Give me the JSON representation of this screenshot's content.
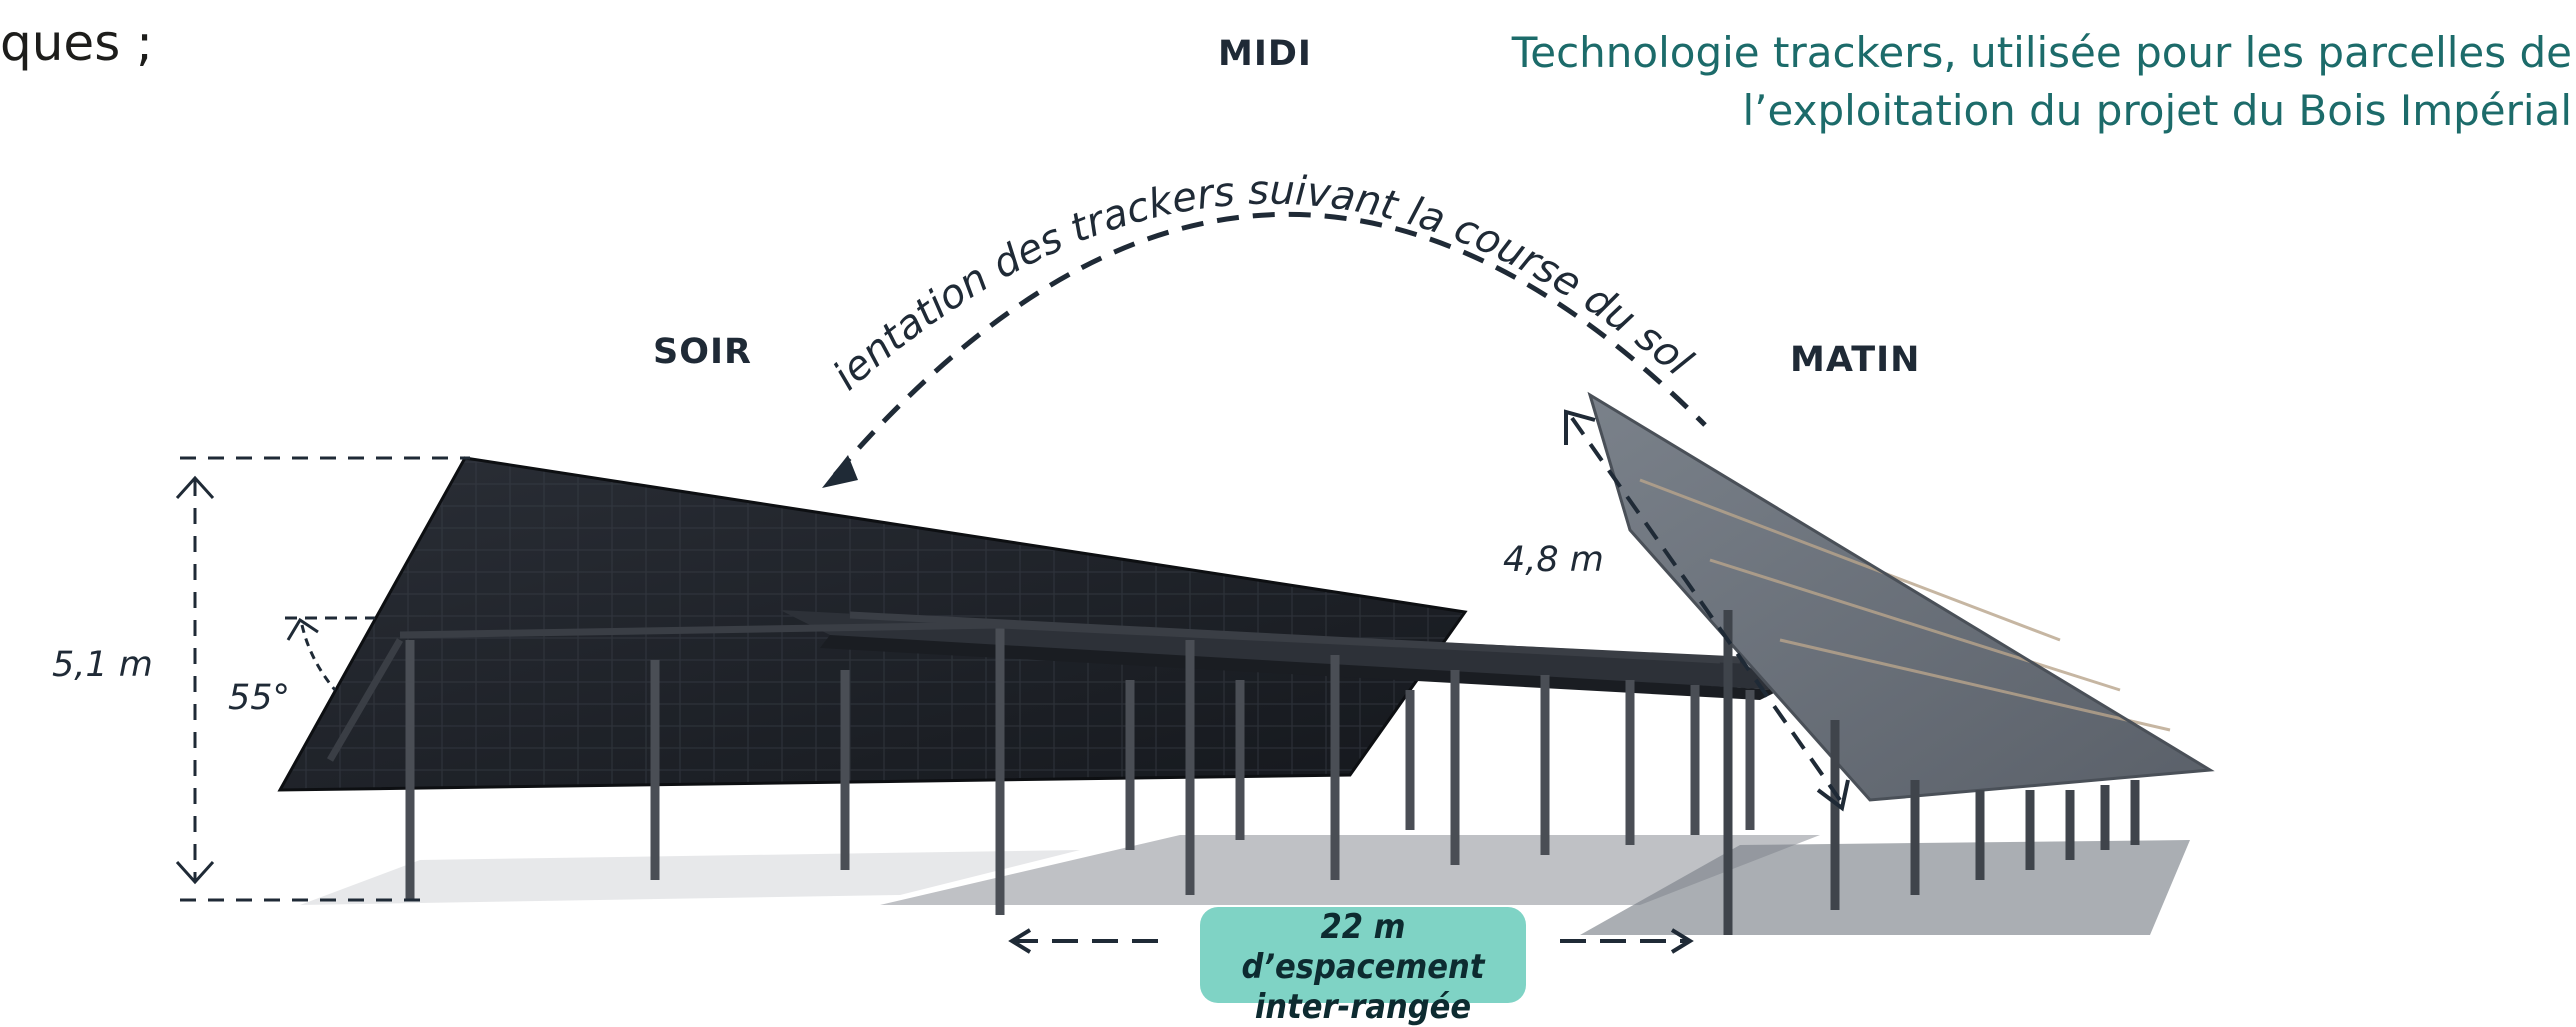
{
  "fragment_text": "ques ;",
  "caption": {
    "line1": "Technologie trackers, utilisée pour les parcelles de",
    "line2": "l’exploitation du projet du Bois Impérial"
  },
  "labels": {
    "midi": "MIDI",
    "soir": "SOIR",
    "matin": "MATIN"
  },
  "arc_text": "Orientation des trackers suivant la course du soleil",
  "dimensions": {
    "height": "5,1 m",
    "angle": "55°",
    "panel_width": "4,8 m"
  },
  "spacing_badge": {
    "line1": "22 m d’espacement",
    "line2": "inter-rangée"
  },
  "colors": {
    "caption": "#1c6b6a",
    "badge": "#7fd3c5",
    "dark_panel": "#1b1e24",
    "light_panel": "#6b727c"
  }
}
